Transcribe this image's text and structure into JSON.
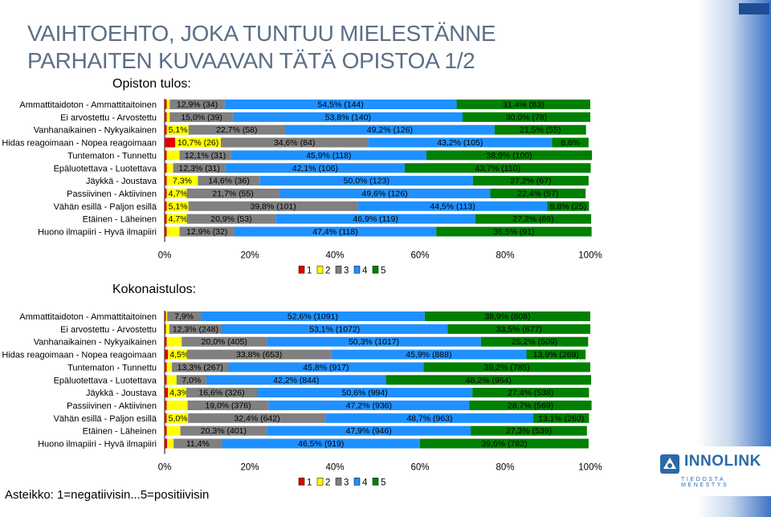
{
  "title_line1": "VAIHTOEHTO, JOKA TUNTUU MIELESTÄNNE",
  "title_line2": "PARHAITEN KUVAAVAN TÄTÄ OPISTOA 1/2",
  "footnote": "Asteikko: 1=negatiivisin...5=positiivisin",
  "logo": {
    "name": "INNOLINK",
    "tagline": "TIEDOSTA MENESTYS"
  },
  "colors": {
    "s1": "#e00000",
    "s2": "#ffff00",
    "s3": "#808080",
    "s4": "#1e90ff",
    "s5": "#008000"
  },
  "chart_data": [
    {
      "type": "bar",
      "orientation": "horizontal-stacked-100",
      "title": "Opiston tulos:",
      "categories": [
        "Ammattitaidoton - Ammattitaitoinen",
        "Ei arvostettu - Arvostettu",
        "Vanhanaikainen - Nykyaikainen",
        "Hidas reagoimaan - Nopea reagoimaan",
        "Tuntematon - Tunnettu",
        "Epäluotettava - Luotettava",
        "Jäykkä - Joustava",
        "Passiivinen - Aktiivinen",
        "Vähän esillä - Paljon esillä",
        "Etäinen - Läheinen",
        "Huono ilmapiiri - Hyvä ilmapiiri"
      ],
      "series": [
        {
          "name": "1",
          "values": [
            0.5,
            0.5,
            0.5,
            2.5,
            0.5,
            0.5,
            0.5,
            0.5,
            0.5,
            0.5,
            0.5
          ]
        },
        {
          "name": "2",
          "values": [
            0.7,
            0.7,
            5.1,
            10.7,
            3.0,
            1.5,
            7.3,
            4.7,
            5.1,
            4.7,
            3.0
          ]
        },
        {
          "name": "3",
          "values": [
            12.9,
            15.0,
            22.7,
            34.6,
            12.1,
            12.3,
            14.6,
            21.7,
            39.8,
            20.9,
            12.9
          ]
        },
        {
          "name": "4",
          "values": [
            54.5,
            53.8,
            49.2,
            43.2,
            45.9,
            42.1,
            50.0,
            49.6,
            44.5,
            46.9,
            47.4
          ]
        },
        {
          "name": "5",
          "values": [
            31.4,
            30.0,
            21.5,
            8.6,
            38.9,
            43.7,
            27.2,
            22.4,
            9.8,
            27.2,
            36.5
          ]
        }
      ],
      "labels": [
        [
          "",
          "",
          "12,9% (34)",
          "54,5% (144)",
          "31,4% (83)"
        ],
        [
          "",
          "",
          "15,0% (39)",
          "53,8% (140)",
          "30,0% (78)"
        ],
        [
          "",
          "5,1%",
          "22,7% (58)",
          "49,2% (126)",
          "21,5% (55)"
        ],
        [
          "",
          "10,7% (26)",
          "34,6% (84)",
          "43,2% (105)",
          "8,6%"
        ],
        [
          "",
          "",
          "12,1% (31)",
          "45,9% (118)",
          "38,9% (100)"
        ],
        [
          "",
          "",
          "12,3% (31)",
          "42,1% (106)",
          "43,7% (110)"
        ],
        [
          "",
          "7,3%",
          "14,6% (36)",
          "50,0% (123)",
          "27,2% (67)"
        ],
        [
          "",
          "4,7%",
          "21,7% (55)",
          "49,6% (126)",
          "22,4% (57)"
        ],
        [
          "",
          "5,1%",
          "39,8% (101)",
          "44,5% (113)",
          "9,8% (25)"
        ],
        [
          "",
          "4,7%",
          "20,9% (53)",
          "46,9% (119)",
          "27,2% (69)"
        ],
        [
          "",
          "",
          "12,9% (32)",
          "47,4% (118)",
          "36,5% (91)"
        ]
      ],
      "xlim": [
        0,
        100
      ],
      "xticks": [
        "0%",
        "20%",
        "40%",
        "60%",
        "80%",
        "100%"
      ],
      "legend": [
        "1",
        "2",
        "3",
        "4",
        "5"
      ],
      "legend_position": "bottom"
    },
    {
      "type": "bar",
      "orientation": "horizontal-stacked-100",
      "title": "Kokonaistulos:",
      "categories": [
        "Ammattitaidoton - Ammattitaitoinen",
        "Ei arvostettu - Arvostettu",
        "Vanhanaikainen - Nykyaikainen",
        "Hidas reagoimaan - Nopea reagoimaan",
        "Tuntematon - Tunnettu",
        "Epäluotettava - Luotettava",
        "Jäykkä - Joustava",
        "Passiivinen - Aktiivinen",
        "Vähän esillä - Paljon esillä",
        "Etäinen - Läheinen",
        "Huono ilmapiiri - Hyvä ilmapiiri"
      ],
      "series": [
        {
          "name": "1",
          "values": [
            0.3,
            0.3,
            0.5,
            0.8,
            0.5,
            0.5,
            0.8,
            0.5,
            0.5,
            0.5,
            0.6
          ]
        },
        {
          "name": "2",
          "values": [
            0.3,
            0.8,
            3.5,
            4.5,
            1.2,
            2.3,
            4.3,
            4.9,
            5.0,
            3.2,
            1.5
          ]
        },
        {
          "name": "3",
          "values": [
            7.9,
            12.3,
            20.0,
            33.8,
            13.3,
            7.0,
            16.6,
            19.0,
            32.4,
            20.3,
            11.4
          ]
        },
        {
          "name": "4",
          "values": [
            52.6,
            53.1,
            50.3,
            45.9,
            45.8,
            42.2,
            50.6,
            47.2,
            48.7,
            47.9,
            46.5
          ]
        },
        {
          "name": "5",
          "values": [
            38.9,
            33.5,
            25.2,
            13.9,
            39.2,
            48.2,
            27.4,
            28.7,
            13.1,
            27.3,
            39.6
          ]
        }
      ],
      "labels": [
        [
          "",
          "",
          "7,9%",
          "52,6% (1091)",
          "38,9% (808)"
        ],
        [
          "",
          "",
          "12,3% (248)",
          "53,1% (1072)",
          "33,5% (677)"
        ],
        [
          "",
          "",
          "20,0% (405)",
          "50,3% (1017)",
          "25,2% (509)"
        ],
        [
          "",
          "4,5%",
          "33,8% (653)",
          "45,9% (888)",
          "13,9% (269)"
        ],
        [
          "",
          "",
          "13,3% (267)",
          "45,8% (917)",
          "39,2% (785)"
        ],
        [
          "",
          "",
          "7,0%",
          "42,2% (844)",
          "48,2% (964)"
        ],
        [
          "",
          "4,3%",
          "16,6% (326)",
          "50,6% (994)",
          "27,4% (538)"
        ],
        [
          "",
          "",
          "19,0% (376)",
          "47,2% (936)",
          "28,7% (569)"
        ],
        [
          "",
          "5,0%",
          "32,4% (642)",
          "48,7% (963)",
          "13,1% (260)"
        ],
        [
          "",
          "",
          "20,3% (401)",
          "47,9% (946)",
          "27,3% (539)"
        ],
        [
          "",
          "",
          "11,4%",
          "46,5% (919)",
          "39,6% (782)"
        ]
      ],
      "xlim": [
        0,
        100
      ],
      "xticks": [
        "0%",
        "20%",
        "40%",
        "60%",
        "80%",
        "100%"
      ],
      "legend": [
        "1",
        "2",
        "3",
        "4",
        "5"
      ],
      "legend_position": "bottom"
    }
  ]
}
